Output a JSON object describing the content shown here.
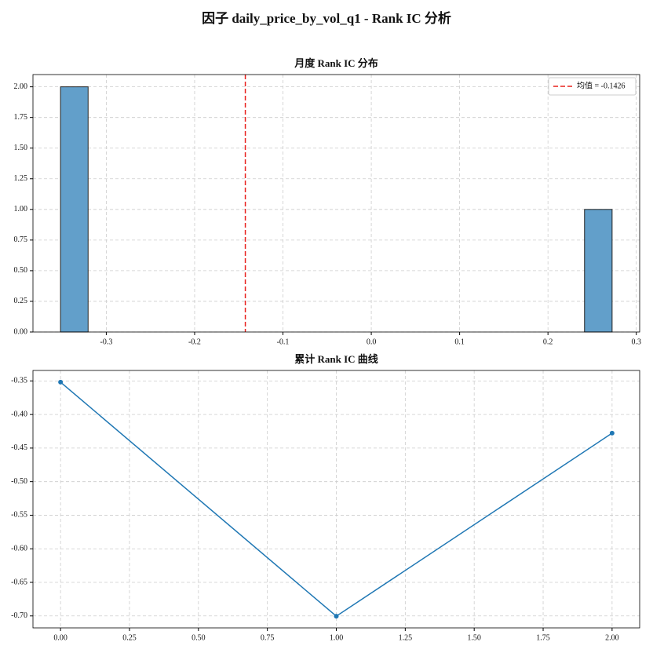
{
  "title": "因子 daily_price_by_vol_q1 - Rank IC 分析",
  "chart_data": [
    {
      "type": "histogram",
      "title": "月度 Rank IC 分布",
      "bins": [
        -0.3518,
        -0.32058,
        -0.28936,
        -0.25814,
        -0.22692,
        -0.1957,
        -0.16448,
        -0.13326,
        -0.10204,
        -0.07082,
        -0.0396,
        -0.00838,
        0.02284,
        0.05406,
        0.08528,
        0.1165,
        0.14772,
        0.17894,
        0.21016,
        0.24138,
        0.2726
      ],
      "values": [
        2,
        0,
        0,
        0,
        0,
        0,
        0,
        0,
        0,
        0,
        0,
        0,
        0,
        0,
        0,
        0,
        0,
        0,
        0,
        1
      ],
      "color": "#629fca",
      "edgecolor": "#222222",
      "xlim": [
        -0.383,
        0.3038
      ],
      "ylim": [
        0,
        2.1
      ],
      "xticks": [
        -0.3,
        -0.2,
        -0.1,
        {
          "value": 0,
          "label": "0.0"
        },
        0.1,
        0.2,
        0.3
      ],
      "yticks": [
        {
          "value": 0,
          "label": "0.00"
        },
        {
          "value": 0.25,
          "label": "0.25"
        },
        {
          "value": 0.5,
          "label": "0.50"
        },
        {
          "value": 0.75,
          "label": "0.75"
        },
        {
          "value": 1,
          "label": "1.00"
        },
        {
          "value": 1.25,
          "label": "1.25"
        },
        {
          "value": 1.5,
          "label": "1.50"
        },
        {
          "value": 1.75,
          "label": "1.75"
        },
        {
          "value": 2,
          "label": "2.00"
        }
      ],
      "grid": true,
      "mean_line": {
        "value": -0.1426,
        "label": "均值 = -0.1426",
        "color": "#e8201c"
      },
      "legend": "upper right"
    },
    {
      "type": "line",
      "title": "累计 Rank IC 曲线",
      "x": [
        0,
        1,
        2
      ],
      "values": [
        -0.3518,
        -0.7004,
        -0.4278
      ],
      "color": "#1f77b4",
      "xlim": [
        -0.1,
        2.1
      ],
      "ylim": [
        -0.7178,
        -0.3344
      ],
      "xticks": [
        {
          "value": 0,
          "label": "0.00"
        },
        {
          "value": 0.25,
          "label": "0.25"
        },
        {
          "value": 0.5,
          "label": "0.50"
        },
        {
          "value": 0.75,
          "label": "0.75"
        },
        {
          "value": 1,
          "label": "1.00"
        },
        {
          "value": 1.25,
          "label": "1.25"
        },
        {
          "value": 1.5,
          "label": "1.50"
        },
        {
          "value": 1.75,
          "label": "1.75"
        },
        {
          "value": 2,
          "label": "2.00"
        }
      ],
      "yticks": [
        {
          "value": -0.35,
          "label": "-0.35"
        },
        {
          "value": -0.4,
          "label": "-0.40"
        },
        {
          "value": -0.45,
          "label": "-0.45"
        },
        {
          "value": -0.5,
          "label": "-0.50"
        },
        {
          "value": -0.55,
          "label": "-0.55"
        },
        {
          "value": -0.6,
          "label": "-0.60"
        },
        {
          "value": -0.65,
          "label": "-0.65"
        },
        {
          "value": -0.7,
          "label": "-0.70"
        }
      ],
      "grid": true
    }
  ]
}
